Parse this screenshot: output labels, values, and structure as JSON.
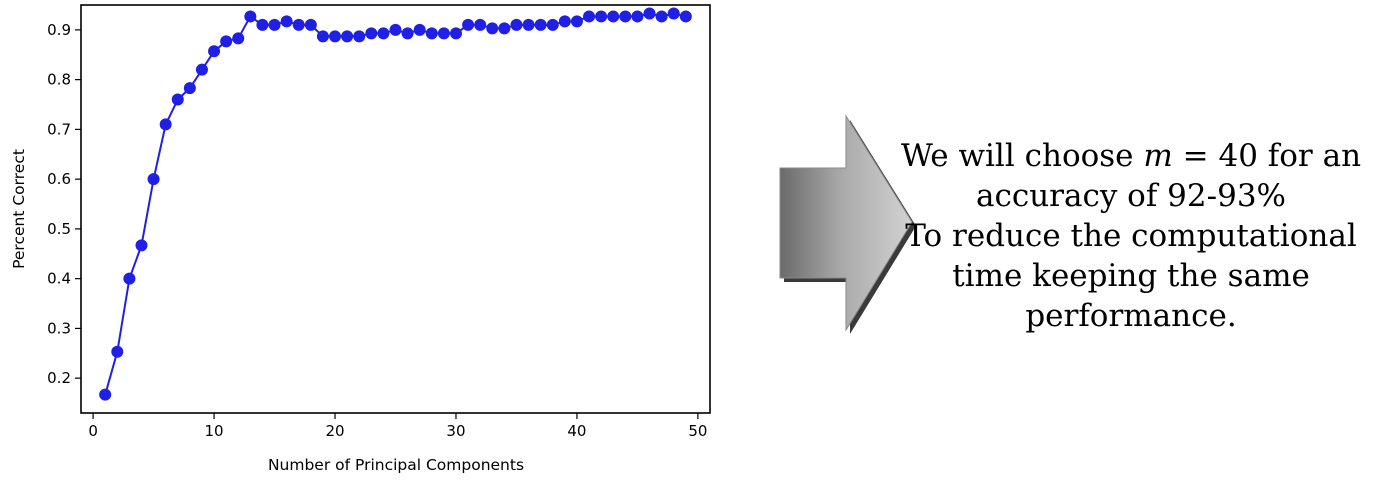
{
  "chart_data": {
    "type": "line",
    "xlabel": "Number of Principal Components",
    "ylabel": "Percent Correct",
    "xlim": [
      -1,
      51
    ],
    "ylim": [
      0.13,
      0.95
    ],
    "xticks": [
      0,
      10,
      20,
      30,
      40,
      50
    ],
    "yticks": [
      0.2,
      0.3,
      0.4,
      0.5,
      0.6,
      0.7,
      0.8,
      0.9
    ],
    "marker": "circle",
    "line_color": "#1f1fe6",
    "series": [
      {
        "x": [
          1,
          2,
          3,
          4,
          5,
          6,
          7,
          8,
          9,
          10,
          11,
          12,
          13,
          14,
          15,
          16,
          17,
          18,
          19,
          20,
          21,
          22,
          23,
          24,
          25,
          26,
          27,
          28,
          29,
          30,
          31,
          32,
          33,
          34,
          35,
          36,
          37,
          38,
          39,
          40,
          41,
          42,
          43,
          44,
          45,
          46,
          47,
          48,
          49
        ],
        "values": [
          0.167,
          0.253,
          0.4,
          0.467,
          0.6,
          0.71,
          0.76,
          0.783,
          0.82,
          0.857,
          0.877,
          0.883,
          0.927,
          0.91,
          0.91,
          0.917,
          0.91,
          0.91,
          0.887,
          0.887,
          0.887,
          0.887,
          0.893,
          0.893,
          0.9,
          0.893,
          0.9,
          0.893,
          0.893,
          0.893,
          0.91,
          0.91,
          0.903,
          0.903,
          0.91,
          0.91,
          0.91,
          0.91,
          0.917,
          0.917,
          0.927,
          0.927,
          0.927,
          0.927,
          0.927,
          0.933,
          0.927,
          0.933,
          0.927
        ]
      }
    ]
  },
  "caption": {
    "line1_before": "We will choose ",
    "variable": "m",
    "equals": " = ",
    "value_text": " 40 for an",
    "line2": "accuracy of 92-93%",
    "line3": "To reduce the computational",
    "line4": "time keeping the same",
    "line5": "performance."
  }
}
